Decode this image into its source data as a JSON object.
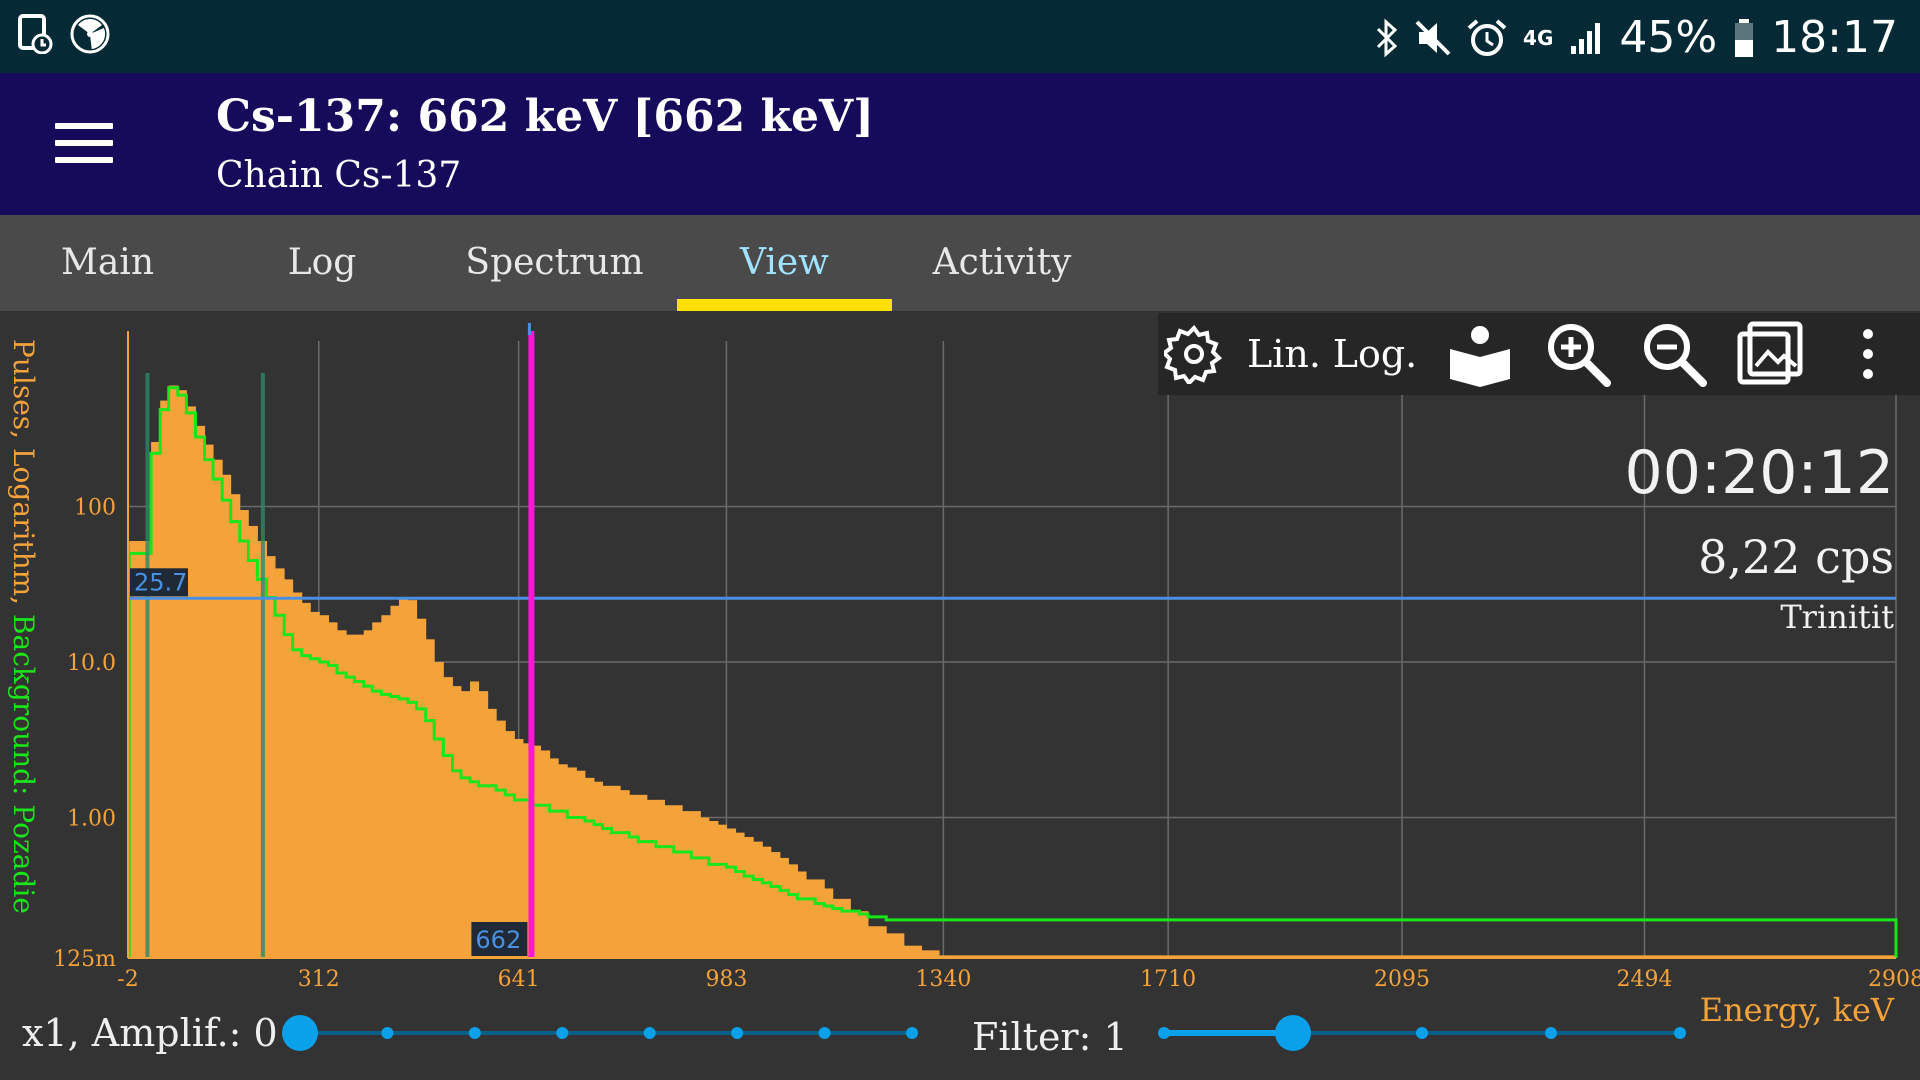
{
  "status_bar": {
    "battery": "45%",
    "time": "18:17",
    "network": "4G",
    "icons": [
      "battery-saver-icon",
      "radiation-icon",
      "bluetooth-icon",
      "mute-icon",
      "alarm-icon",
      "network-4g-icon",
      "signal-icon",
      "battery-icon"
    ]
  },
  "app_bar": {
    "title": "Cs-137: 662 keV [662 keV]",
    "subtitle": "Chain Cs-137"
  },
  "tabs": [
    {
      "label": "Main",
      "active": false
    },
    {
      "label": "Log",
      "active": false
    },
    {
      "label": "Spectrum",
      "active": false
    },
    {
      "label": "View",
      "active": true
    },
    {
      "label": "Activity",
      "active": false
    }
  ],
  "toolbar": {
    "lin_label": "Lin.",
    "log_label": "Log.",
    "icons": [
      "settings-icon",
      "library-icon",
      "zoom-in-icon",
      "zoom-out-icon",
      "image-icon",
      "more-icon"
    ]
  },
  "overlay": {
    "timer": "00:20:12",
    "cps": "8,22 cps",
    "device": "Trinitit"
  },
  "colors": {
    "spectrum_fill": "#f4a23a",
    "background_line": "#19e619",
    "marker": "#ff16d6",
    "hline": "#4a90e2",
    "tab_indicator": "#ffe000"
  },
  "chart_data": {
    "type": "bar",
    "xlabel": "Energy, keV",
    "ylabel_primary": "Pulses, Logarithm,",
    "ylabel_secondary": "Background: Pozadie",
    "y_scale": "log",
    "xlim": [
      -2,
      2908
    ],
    "ylim": [
      0.125,
      1000
    ],
    "x_tick_labels": [
      "-2",
      "312",
      "641",
      "983",
      "1340",
      "1710",
      "2095",
      "2494",
      "2908"
    ],
    "y_tick_labels": [
      "125m",
      "1.00",
      "10.0",
      "100"
    ],
    "hline_value": 25.7,
    "hline_label": "25.7",
    "marker_energy": 662,
    "marker_label": "662",
    "series": [
      {
        "name": "Pulses",
        "energy": [
          0,
          36,
          51,
          65,
          80,
          94,
          109,
          124,
          138,
          153,
          167,
          182,
          196,
          211,
          226,
          240,
          255,
          269,
          284,
          298,
          313,
          328,
          342,
          357,
          371,
          386,
          400,
          415,
          430,
          444,
          459,
          473,
          488,
          502,
          517,
          532,
          546,
          561,
          575,
          590,
          604,
          619,
          634,
          648,
          663,
          677,
          692,
          706,
          721,
          736,
          750,
          765,
          779,
          794,
          808,
          823,
          838,
          852,
          867,
          881,
          896,
          910,
          925,
          940,
          954,
          969,
          983,
          998,
          1012,
          1027,
          1042,
          1056,
          1071,
          1085,
          1100,
          1114,
          1129,
          1144,
          1158,
          1173,
          1187,
          1202,
          1216,
          1231,
          1246,
          1260,
          1275,
          1289,
          1304,
          1318,
          1333,
          1348,
          1362,
          1377,
          1391,
          1406,
          1420,
          1435,
          1450,
          1464,
          1479,
          1493,
          1508,
          1522,
          1537,
          1552,
          1566,
          1581,
          1595,
          1610,
          1624,
          1639,
          1654,
          1668,
          1683,
          1697,
          1712,
          1726,
          1741,
          1756,
          1770,
          1785,
          1799,
          1814,
          1828,
          1843,
          1858,
          1872,
          1887,
          1901,
          1916,
          1930,
          1945,
          1960,
          1974,
          1989,
          2003,
          2018,
          2032,
          2047,
          2062,
          2076,
          2091,
          2105,
          2120,
          2134,
          2149,
          2164,
          2178,
          2193,
          2207,
          2222,
          2236,
          2251,
          2266,
          2280,
          2295,
          2309,
          2324,
          2338,
          2353,
          2368,
          2382,
          2397,
          2411,
          2426,
          2440,
          2455,
          2470,
          2484,
          2499,
          2513,
          2528,
          2542,
          2557,
          2572,
          2586,
          2601,
          2615,
          2630,
          2644,
          2659,
          2674,
          2688,
          2703,
          2717,
          2732,
          2746,
          2761,
          2776,
          2790,
          2805,
          2819,
          2834,
          2848,
          2863,
          2878,
          2892
        ],
        "values": [
          60,
          260,
          480,
          600,
          560,
          440,
          330,
          250,
          200,
          160,
          120,
          95,
          75,
          60,
          48,
          40,
          34,
          28,
          24,
          21,
          20,
          18,
          16,
          15,
          15,
          16,
          18,
          20,
          23,
          26,
          25,
          19,
          14,
          10,
          8,
          7,
          6.5,
          7.5,
          6.5,
          5,
          4.2,
          3.6,
          3.2,
          3,
          2.9,
          2.7,
          2.4,
          2.2,
          2.1,
          2,
          1.8,
          1.7,
          1.6,
          1.6,
          1.5,
          1.4,
          1.4,
          1.3,
          1.3,
          1.2,
          1.2,
          1.1,
          1.1,
          1.0,
          0.95,
          0.9,
          0.85,
          0.8,
          0.75,
          0.7,
          0.65,
          0.6,
          0.55,
          0.5,
          0.45,
          0.4,
          0.4,
          0.35,
          0.3,
          0.3,
          0.25,
          0.25,
          0.2,
          0.2,
          0.18,
          0.18,
          0.15,
          0.15,
          0.14,
          0.14,
          0.13,
          0.13,
          0.13,
          0.13,
          0.13,
          0.13,
          0.13,
          0.13,
          0.13,
          0.13,
          0.13,
          0.13,
          0.13,
          0.13,
          0.13,
          0.13,
          0.13,
          0.13,
          0.13,
          0.13,
          0.13,
          0.13,
          0.13,
          0.13,
          0.13,
          0.13,
          0.13,
          0.13,
          0.13,
          0.13,
          0.13,
          0.13,
          0.13,
          0.13,
          0.13,
          0.13,
          0.13,
          0.13,
          0.13,
          0.13,
          0.13,
          0.13,
          0.13,
          0.13,
          0.13,
          0.13,
          0.13,
          0.13,
          0.13,
          0.13,
          0.13,
          0.13,
          0.13,
          0.13,
          0.13,
          0.13,
          0.13,
          0.13,
          0.13,
          0.13,
          0.13,
          0.13,
          0.13,
          0.13,
          0.13,
          0.13,
          0.13,
          0.13,
          0.13,
          0.13,
          0.13,
          0.13,
          0.13,
          0.13,
          0.13,
          0.13,
          0.13,
          0.13,
          0.13,
          0.13,
          0.13,
          0.13,
          0.13,
          0.13,
          0.13,
          0.13,
          0.13,
          0.13,
          0.13,
          0.13,
          0.13,
          0.13,
          0.13,
          0.13,
          0.13,
          0.13,
          0.13,
          0.13,
          0.13,
          0.13,
          0.13,
          0.13,
          0.13,
          0.13,
          0.13,
          0.13,
          0.13,
          0.13,
          0.13,
          0.13
        ]
      },
      {
        "name": "Background: Pozadie",
        "energy": [
          0,
          36,
          51,
          65,
          80,
          94,
          109,
          124,
          138,
          153,
          167,
          182,
          196,
          211,
          226,
          240,
          255,
          269,
          284,
          298,
          313,
          328,
          342,
          357,
          371,
          386,
          400,
          415,
          430,
          444,
          459,
          473,
          488,
          502,
          517,
          532,
          546,
          561,
          575,
          590,
          604,
          619,
          634,
          648,
          663,
          677,
          692,
          706,
          721,
          736,
          750,
          765,
          779,
          794,
          808,
          823,
          838,
          852,
          867,
          881,
          896,
          910,
          925,
          940,
          954,
          969,
          983,
          998,
          1012,
          1027,
          1042,
          1056,
          1071,
          1085,
          1100,
          1114,
          1129,
          1144,
          1158,
          1173,
          1187,
          1202,
          1216,
          1231,
          1246,
          1260,
          1275,
          1289,
          1304,
          1318,
          1333,
          1348,
          1362,
          1377,
          1391,
          1406,
          1420,
          1435,
          1450,
          1464,
          1479,
          1493,
          1508,
          1522,
          1537,
          1552,
          1566,
          1581,
          1595,
          1610,
          1624,
          1639,
          1654,
          1668,
          1683,
          1697,
          1712,
          1726,
          1741,
          1756,
          1770,
          1785,
          1799,
          1814,
          1828,
          1843,
          1858,
          1872,
          1887,
          1901,
          1916,
          1930,
          1945,
          1960,
          1974,
          1989,
          2003,
          2018,
          2032,
          2047,
          2062,
          2076,
          2091,
          2105,
          2120,
          2134,
          2149,
          2164,
          2178,
          2193,
          2207,
          2222,
          2236,
          2251,
          2266,
          2280,
          2295,
          2309,
          2324,
          2338,
          2353,
          2368,
          2382,
          2397,
          2411,
          2426,
          2440,
          2455,
          2470,
          2484,
          2499,
          2513,
          2528,
          2542,
          2557,
          2572,
          2586,
          2601,
          2615,
          2630,
          2644,
          2659,
          2674,
          2688,
          2703,
          2717,
          2732,
          2746,
          2761,
          2776,
          2790,
          2805,
          2819,
          2834,
          2848,
          2863,
          2878,
          2892
        ],
        "values": [
          50,
          220,
          420,
          580,
          520,
          400,
          280,
          200,
          150,
          110,
          80,
          60,
          45,
          34,
          26,
          20,
          15,
          12,
          11,
          10.5,
          10,
          9.5,
          8.5,
          8,
          7.5,
          7,
          6.5,
          6.2,
          6,
          5.8,
          5.5,
          5,
          4.2,
          3.2,
          2.5,
          2,
          1.8,
          1.7,
          1.6,
          1.6,
          1.5,
          1.4,
          1.3,
          1.3,
          1.2,
          1.2,
          1.1,
          1.1,
          1.0,
          1.0,
          0.95,
          0.9,
          0.85,
          0.8,
          0.8,
          0.75,
          0.7,
          0.7,
          0.65,
          0.65,
          0.6,
          0.6,
          0.55,
          0.55,
          0.5,
          0.5,
          0.48,
          0.45,
          0.42,
          0.4,
          0.38,
          0.36,
          0.34,
          0.32,
          0.3,
          0.3,
          0.28,
          0.27,
          0.26,
          0.25,
          0.25,
          0.24,
          0.23,
          0.23,
          0.22,
          0.22,
          0.22,
          0.22,
          0.22,
          0.22,
          0.22,
          0.22,
          0.22,
          0.22,
          0.22,
          0.22,
          0.22,
          0.22,
          0.22,
          0.22,
          0.22,
          0.22,
          0.22,
          0.22,
          0.22,
          0.22,
          0.22,
          0.22,
          0.22,
          0.22,
          0.22,
          0.22,
          0.22,
          0.22,
          0.22,
          0.22,
          0.22,
          0.22,
          0.22,
          0.22,
          0.22,
          0.22,
          0.22,
          0.22,
          0.22,
          0.22,
          0.22,
          0.22,
          0.22,
          0.22,
          0.22,
          0.22,
          0.22,
          0.22,
          0.22,
          0.22,
          0.22,
          0.22,
          0.22,
          0.22,
          0.22,
          0.22,
          0.22,
          0.22,
          0.22,
          0.22,
          0.22,
          0.22,
          0.22,
          0.22,
          0.22,
          0.22,
          0.22,
          0.22,
          0.22,
          0.22,
          0.22,
          0.22,
          0.22,
          0.22,
          0.22,
          0.22,
          0.22,
          0.22,
          0.22,
          0.22,
          0.22,
          0.22,
          0.22,
          0.22,
          0.22,
          0.22,
          0.22,
          0.22,
          0.22,
          0.22,
          0.22,
          0.22,
          0.22,
          0.22,
          0.22,
          0.22,
          0.22,
          0.22,
          0.22,
          0.22,
          0.22,
          0.22,
          0.22,
          0.22,
          0.22,
          0.22,
          0.22,
          0.22,
          0.22,
          0.22,
          0.22,
          0.22,
          0.22,
          0.22,
          0.22,
          0.22
        ]
      }
    ]
  },
  "bottom": {
    "amp_label": "x1, Amplif.: 0",
    "filter_label": "Filter: 1",
    "energy_label": "Energy, keV",
    "amp_value": 0,
    "amp_max": 7,
    "filter_value": 1,
    "filter_max": 4
  }
}
